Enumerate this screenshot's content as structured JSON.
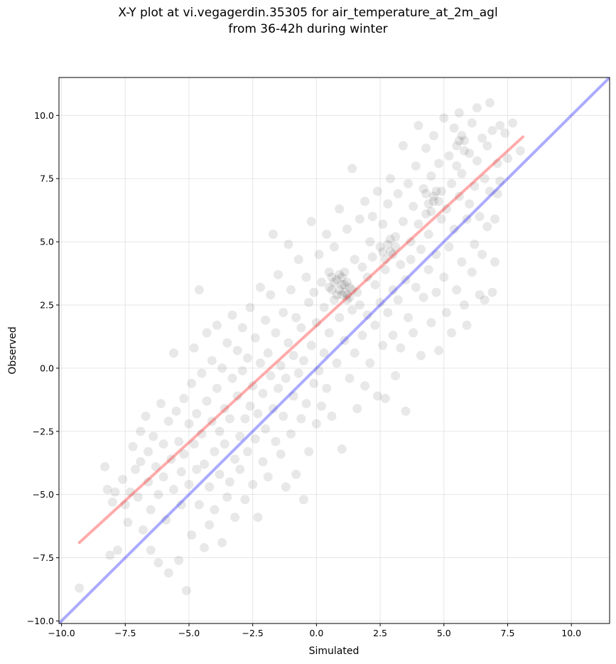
{
  "chart_data": {
    "type": "scatter",
    "title_line1": "X-Y plot at vi.vegagerdin.35305 for air_temperature_at_2m_agl",
    "title_line2": "from 36-42h during winter",
    "xlabel": "Simulated",
    "ylabel": "Observed",
    "xlim": [
      -10.1,
      11.5
    ],
    "ylim": [
      -10.1,
      11.5
    ],
    "xticks": [
      -10.0,
      -7.5,
      -5.0,
      -2.5,
      0.0,
      2.5,
      5.0,
      7.5,
      10.0
    ],
    "yticks": [
      -10.0,
      -7.5,
      -5.0,
      -2.5,
      0.0,
      2.5,
      5.0,
      7.5,
      10.0
    ],
    "grid": true,
    "point_color": "#000000",
    "point_opacity": 0.09,
    "identity_line": {
      "color": "#0000ff",
      "opacity": 0.33,
      "x": [
        -10.1,
        11.5
      ],
      "y": [
        -10.1,
        11.5
      ]
    },
    "regression_line": {
      "color": "#ff0000",
      "opacity": 0.33,
      "x": [
        -9.3,
        8.1
      ],
      "y": [
        -6.9,
        9.15
      ]
    },
    "points": [
      [
        -9.3,
        -8.7
      ],
      [
        -8.3,
        -3.9
      ],
      [
        -8.2,
        -4.8
      ],
      [
        -8.1,
        -7.4
      ],
      [
        -8.0,
        -5.3
      ],
      [
        -7.9,
        -4.9
      ],
      [
        -7.8,
        -7.2
      ],
      [
        -7.6,
        -4.4
      ],
      [
        -7.5,
        -5.4
      ],
      [
        -7.4,
        -6.1
      ],
      [
        -7.3,
        -4.9
      ],
      [
        -7.2,
        -3.1
      ],
      [
        -7.1,
        -4.0
      ],
      [
        -7.0,
        -5.1
      ],
      [
        -6.9,
        -2.5
      ],
      [
        -6.9,
        -3.7
      ],
      [
        -6.8,
        -6.4
      ],
      [
        -6.7,
        -1.9
      ],
      [
        -6.6,
        -3.3
      ],
      [
        -6.6,
        -4.5
      ],
      [
        -6.5,
        -5.6
      ],
      [
        -6.5,
        -7.2
      ],
      [
        -6.4,
        -2.7
      ],
      [
        -6.3,
        -3.9
      ],
      [
        -6.2,
        -5.0
      ],
      [
        -6.2,
        -7.7
      ],
      [
        -6.1,
        -1.4
      ],
      [
        -6.0,
        -3.0
      ],
      [
        -6.0,
        -4.3
      ],
      [
        -5.9,
        -6.0
      ],
      [
        -5.8,
        -2.1
      ],
      [
        -5.8,
        -8.1
      ],
      [
        -5.7,
        -3.6
      ],
      [
        -5.6,
        -4.8
      ],
      [
        -5.6,
        0.6
      ],
      [
        -5.5,
        -1.7
      ],
      [
        -5.4,
        -2.9
      ],
      [
        -5.4,
        -7.6
      ],
      [
        -5.3,
        -4.1
      ],
      [
        -5.3,
        -5.4
      ],
      [
        -5.2,
        -1.2
      ],
      [
        -5.2,
        -3.4
      ],
      [
        -5.1,
        -8.8
      ],
      [
        -5.0,
        -2.2
      ],
      [
        -5.0,
        -4.6
      ],
      [
        -4.9,
        -0.6
      ],
      [
        -4.9,
        -6.6
      ],
      [
        -4.8,
        -3.0
      ],
      [
        -4.8,
        0.8
      ],
      [
        -4.7,
        -1.8
      ],
      [
        -4.7,
        -4.0
      ],
      [
        -4.6,
        -5.4
      ],
      [
        -4.6,
        3.1
      ],
      [
        -4.5,
        -2.6
      ],
      [
        -4.5,
        -0.2
      ],
      [
        -4.4,
        -3.8
      ],
      [
        -4.4,
        -7.1
      ],
      [
        -4.3,
        -1.3
      ],
      [
        -4.3,
        1.4
      ],
      [
        -4.2,
        -4.7
      ],
      [
        -4.2,
        -6.2
      ],
      [
        -4.1,
        -2.1
      ],
      [
        -4.1,
        0.3
      ],
      [
        -4.0,
        -3.3
      ],
      [
        -4.0,
        -5.6
      ],
      [
        -3.9,
        -0.8
      ],
      [
        -3.9,
        1.7
      ],
      [
        -3.8,
        -2.5
      ],
      [
        -3.8,
        -4.2
      ],
      [
        -3.7,
        -6.9
      ],
      [
        -3.7,
        0.0
      ],
      [
        -3.6,
        -1.6
      ],
      [
        -3.6,
        -3.0
      ],
      [
        -3.5,
        -5.1
      ],
      [
        -3.5,
        1.0
      ],
      [
        -3.4,
        -2.0
      ],
      [
        -3.4,
        -4.5
      ],
      [
        -3.3,
        -0.4
      ],
      [
        -3.3,
        2.1
      ],
      [
        -3.2,
        -3.6
      ],
      [
        -3.2,
        -5.9
      ],
      [
        -3.1,
        -1.1
      ],
      [
        -3.1,
        0.7
      ],
      [
        -3.0,
        -2.7
      ],
      [
        -3.0,
        -4.0
      ],
      [
        -2.9,
        -0.1
      ],
      [
        -2.9,
        1.6
      ],
      [
        -2.8,
        -2.0
      ],
      [
        -2.8,
        -5.2
      ],
      [
        -2.7,
        -3.3
      ],
      [
        -2.7,
        0.4
      ],
      [
        -2.6,
        -1.5
      ],
      [
        -2.6,
        2.4
      ],
      [
        -2.5,
        -4.6
      ],
      [
        -2.5,
        -0.7
      ],
      [
        -2.4,
        -2.8
      ],
      [
        -2.4,
        1.2
      ],
      [
        -2.3,
        -1.8
      ],
      [
        -2.3,
        -5.9
      ],
      [
        -2.2,
        0.2
      ],
      [
        -2.2,
        3.2
      ],
      [
        -2.1,
        -3.7
      ],
      [
        -2.1,
        -1.0
      ],
      [
        -2.0,
        1.9
      ],
      [
        -2.0,
        -2.4
      ],
      [
        -1.9,
        0.6
      ],
      [
        -1.9,
        -4.3
      ],
      [
        -1.8,
        -0.3
      ],
      [
        -1.8,
        2.9
      ],
      [
        -1.7,
        -1.6
      ],
      [
        -1.7,
        5.3
      ],
      [
        -1.6,
        -2.9
      ],
      [
        -1.6,
        1.4
      ],
      [
        -1.5,
        -0.8
      ],
      [
        -1.5,
        3.7
      ],
      [
        -1.4,
        -3.4
      ],
      [
        -1.4,
        0.1
      ],
      [
        -1.3,
        -1.9
      ],
      [
        -1.3,
        2.2
      ],
      [
        -1.2,
        -4.7
      ],
      [
        -1.2,
        -0.4
      ],
      [
        -1.1,
        4.9
      ],
      [
        -1.1,
        1.0
      ],
      [
        -1.0,
        -2.6
      ],
      [
        -1.0,
        3.1
      ],
      [
        -0.9,
        -1.1
      ],
      [
        -0.9,
        0.5
      ],
      [
        -0.8,
        -4.2
      ],
      [
        -0.8,
        2.0
      ],
      [
        -0.7,
        -0.2
      ],
      [
        -0.7,
        4.3
      ],
      [
        -0.6,
        -2.0
      ],
      [
        -0.6,
        1.6
      ],
      [
        -0.5,
        -5.2
      ],
      [
        -0.5,
        0.3
      ],
      [
        -0.4,
        3.6
      ],
      [
        -0.4,
        -1.4
      ],
      [
        -0.3,
        2.6
      ],
      [
        -0.3,
        -3.3
      ],
      [
        -0.2,
        5.8
      ],
      [
        -0.2,
        0.9
      ],
      [
        -0.1,
        -0.6
      ],
      [
        -0.1,
        3.0
      ],
      [
        0.0,
        -2.2
      ],
      [
        0.0,
        1.8
      ],
      [
        0.1,
        4.5
      ],
      [
        0.1,
        -0.1
      ],
      [
        0.2,
        3.4
      ],
      [
        0.2,
        -1.5
      ],
      [
        0.3,
        2.4
      ],
      [
        0.3,
        0.6
      ],
      [
        0.4,
        5.3
      ],
      [
        0.4,
        -0.8
      ],
      [
        0.5,
        3.8
      ],
      [
        0.5,
        1.4
      ],
      [
        0.6,
        3.1
      ],
      [
        0.6,
        -1.9
      ],
      [
        0.7,
        2.7
      ],
      [
        0.7,
        4.8
      ],
      [
        0.8,
        0.2
      ],
      [
        0.8,
        3.5
      ],
      [
        0.9,
        2.0
      ],
      [
        0.9,
        6.3
      ],
      [
        1.0,
        3.3
      ],
      [
        1.0,
        -3.2
      ],
      [
        1.1,
        1.1
      ],
      [
        1.1,
        3.8
      ],
      [
        1.2,
        2.9
      ],
      [
        1.2,
        5.5
      ],
      [
        1.3,
        -0.4
      ],
      [
        1.3,
        3.2
      ],
      [
        1.4,
        2.3
      ],
      [
        1.4,
        7.9
      ],
      [
        1.5,
        4.3
      ],
      [
        1.5,
        0.6
      ],
      [
        1.6,
        3.0
      ],
      [
        1.6,
        -1.6
      ],
      [
        1.7,
        5.9
      ],
      [
        1.7,
        2.5
      ],
      [
        1.8,
        4.0
      ],
      [
        1.8,
        1.3
      ],
      [
        1.9,
        6.6
      ],
      [
        1.9,
        -0.7
      ],
      [
        2.0,
        3.6
      ],
      [
        2.0,
        2.1
      ],
      [
        2.1,
        5.0
      ],
      [
        2.1,
        0.2
      ],
      [
        2.2,
        4.4
      ],
      [
        2.2,
        6.0
      ],
      [
        2.3,
        1.7
      ],
      [
        2.3,
        3.3
      ],
      [
        2.4,
        7.0
      ],
      [
        2.4,
        -1.1
      ],
      [
        2.5,
        4.8
      ],
      [
        2.5,
        2.6
      ],
      [
        2.6,
        5.7
      ],
      [
        2.6,
        0.9
      ],
      [
        2.7,
        3.9
      ],
      [
        2.7,
        -1.2
      ],
      [
        2.8,
        6.5
      ],
      [
        2.8,
        2.2
      ],
      [
        2.9,
        4.6
      ],
      [
        2.9,
        7.5
      ],
      [
        3.0,
        3.1
      ],
      [
        3.0,
        1.3
      ],
      [
        3.1,
        5.2
      ],
      [
        3.1,
        -0.3
      ],
      [
        3.2,
        6.9
      ],
      [
        3.2,
        2.7
      ],
      [
        3.3,
        4.1
      ],
      [
        3.3,
        0.8
      ],
      [
        3.4,
        5.8
      ],
      [
        3.4,
        8.8
      ],
      [
        3.5,
        3.5
      ],
      [
        3.5,
        -1.7
      ],
      [
        3.6,
        7.3
      ],
      [
        3.6,
        2.0
      ],
      [
        3.7,
        5.0
      ],
      [
        3.7,
        4.3
      ],
      [
        3.8,
        6.4
      ],
      [
        3.8,
        1.4
      ],
      [
        3.9,
        8.0
      ],
      [
        3.9,
        3.2
      ],
      [
        4.0,
        5.7
      ],
      [
        4.0,
        9.6
      ],
      [
        4.1,
        4.7
      ],
      [
        4.1,
        0.5
      ],
      [
        4.2,
        7.1
      ],
      [
        4.2,
        2.8
      ],
      [
        4.3,
        6.1
      ],
      [
        4.3,
        8.7
      ],
      [
        4.4,
        3.9
      ],
      [
        4.4,
        5.3
      ],
      [
        4.5,
        7.6
      ],
      [
        4.5,
        1.8
      ],
      [
        4.6,
        6.6
      ],
      [
        4.6,
        9.2
      ],
      [
        4.7,
        4.5
      ],
      [
        4.7,
        3.0
      ],
      [
        4.8,
        8.1
      ],
      [
        4.8,
        0.7
      ],
      [
        4.9,
        5.9
      ],
      [
        4.9,
        7.0
      ],
      [
        5.0,
        3.6
      ],
      [
        5.0,
        9.9
      ],
      [
        5.1,
        6.3
      ],
      [
        5.1,
        2.2
      ],
      [
        5.2,
        8.4
      ],
      [
        5.2,
        4.8
      ],
      [
        5.3,
        7.3
      ],
      [
        5.3,
        1.4
      ],
      [
        5.4,
        9.5
      ],
      [
        5.4,
        5.5
      ],
      [
        5.5,
        3.1
      ],
      [
        5.5,
        8.0
      ],
      [
        5.6,
        6.8
      ],
      [
        5.6,
        10.1
      ],
      [
        5.7,
        4.2
      ],
      [
        5.7,
        7.7
      ],
      [
        5.8,
        2.5
      ],
      [
        5.8,
        9.0
      ],
      [
        5.9,
        5.9
      ],
      [
        5.9,
        1.7
      ],
      [
        6.0,
        8.5
      ],
      [
        6.0,
        6.5
      ],
      [
        6.1,
        3.8
      ],
      [
        6.1,
        9.7
      ],
      [
        6.2,
        7.2
      ],
      [
        6.2,
        4.9
      ],
      [
        6.3,
        10.3
      ],
      [
        6.3,
        8.2
      ],
      [
        6.4,
        2.9
      ],
      [
        6.4,
        6.0
      ],
      [
        6.5,
        9.1
      ],
      [
        6.5,
        4.5
      ],
      [
        6.6,
        7.5
      ],
      [
        6.6,
        2.7
      ],
      [
        6.7,
        8.8
      ],
      [
        6.7,
        5.6
      ],
      [
        6.8,
        10.5
      ],
      [
        6.8,
        7.0
      ],
      [
        6.9,
        3.0
      ],
      [
        6.9,
        9.4
      ],
      [
        7.0,
        5.9
      ],
      [
        7.0,
        4.2
      ],
      [
        7.1,
        8.1
      ],
      [
        7.1,
        6.9
      ],
      [
        7.2,
        9.6
      ],
      [
        7.2,
        7.4
      ],
      [
        7.4,
        9.3
      ],
      [
        7.5,
        8.3
      ],
      [
        7.7,
        9.7
      ],
      [
        8.0,
        8.6
      ],
      [
        0.7,
        3.4
      ],
      [
        0.9,
        3.1
      ],
      [
        1.0,
        3.6
      ],
      [
        1.1,
        3.0
      ],
      [
        1.2,
        3.4
      ],
      [
        0.8,
        2.9
      ],
      [
        1.3,
        2.8
      ],
      [
        0.6,
        3.6
      ],
      [
        1.1,
        3.3
      ],
      [
        0.9,
        3.7
      ],
      [
        1.4,
        3.1
      ],
      [
        0.5,
        3.2
      ],
      [
        1.2,
        2.7
      ],
      [
        1.0,
        2.9
      ],
      [
        2.6,
        4.6
      ],
      [
        2.8,
        4.9
      ],
      [
        3.0,
        4.5
      ],
      [
        2.7,
        4.3
      ],
      [
        2.9,
        5.1
      ],
      [
        3.1,
        4.8
      ],
      [
        4.4,
        6.5
      ],
      [
        4.6,
        6.8
      ],
      [
        4.5,
        6.2
      ],
      [
        4.8,
        6.6
      ],
      [
        4.3,
        6.9
      ],
      [
        4.7,
        7.0
      ],
      [
        5.5,
        8.8
      ],
      [
        5.7,
        9.2
      ],
      [
        5.8,
        8.6
      ],
      [
        5.6,
        9.0
      ]
    ]
  }
}
